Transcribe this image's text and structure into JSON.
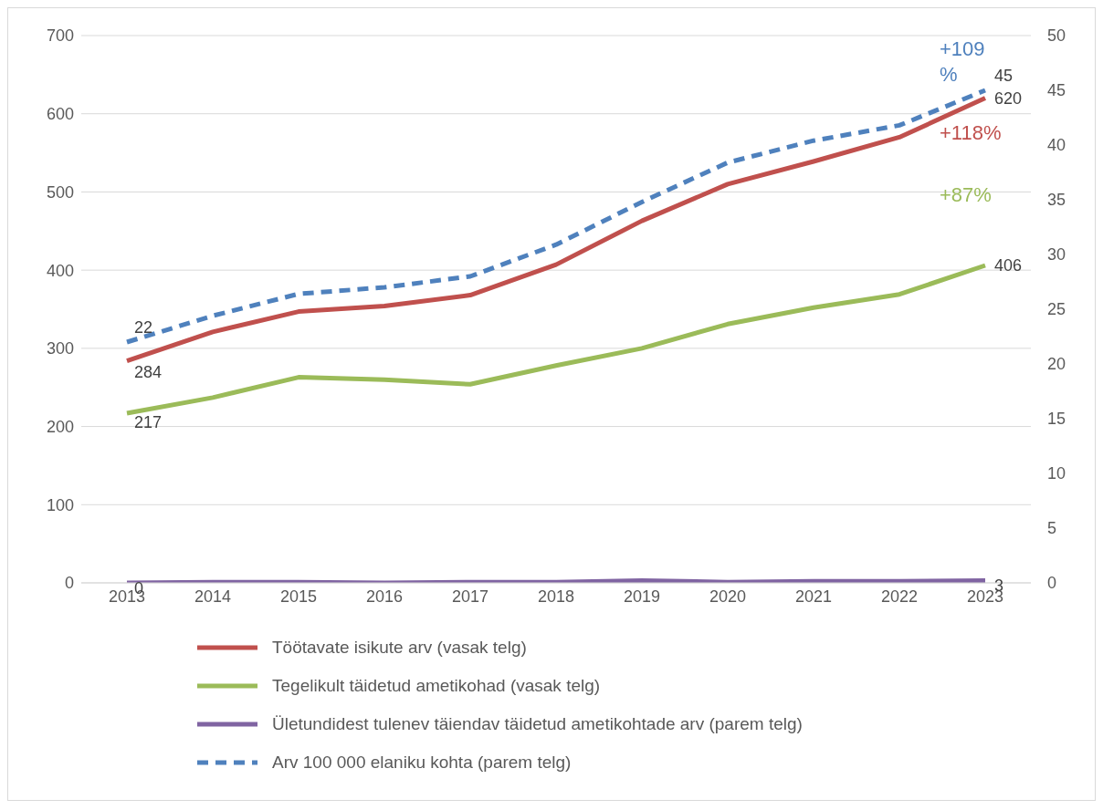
{
  "chart_data": {
    "type": "line",
    "categories": [
      "2013",
      "2014",
      "2015",
      "2016",
      "2017",
      "2018",
      "2019",
      "2020",
      "2021",
      "2022",
      "2023"
    ],
    "series": [
      {
        "name": "Töötavate isikute arv (vasak telg)",
        "color": "#c0504d",
        "values": [
          284,
          321,
          347,
          354,
          368,
          407,
          463,
          510,
          539,
          570,
          620
        ],
        "value_labels": [
          "284",
          null,
          null,
          null,
          null,
          null,
          null,
          null,
          null,
          null,
          "620"
        ]
      },
      {
        "name": "Tegelikult täidetud ametikohad (vasak telg)",
        "color": "#9bbb59",
        "values": [
          217,
          237,
          263,
          260,
          254,
          278,
          300,
          331,
          352,
          369,
          406
        ],
        "value_labels": [
          "217",
          null,
          null,
          null,
          null,
          null,
          null,
          null,
          null,
          null,
          "406"
        ]
      },
      {
        "name": "Ületundidest tulenev täiendav täidetud ametikohtade arv (parem telg)",
        "color": "#8064a2",
        "values": [
          0,
          1,
          1,
          0,
          1,
          1,
          3,
          1,
          2,
          2,
          3
        ],
        "value_labels": [
          "0",
          null,
          null,
          null,
          null,
          null,
          null,
          null,
          null,
          null,
          "3"
        ]
      },
      {
        "name": "Arv 100 000 elaniku kohta (parem telg)",
        "color": "#4f81bd",
        "axis": "y2",
        "line_style": "dashed",
        "values": [
          22,
          24.4,
          26.4,
          27,
          28,
          30.9,
          34.8,
          38.4,
          40.4,
          41.8,
          45
        ],
        "value_labels": [
          "22",
          null,
          null,
          null,
          null,
          null,
          null,
          null,
          null,
          null,
          "45"
        ]
      }
    ],
    "annotations": [
      "+118%",
      "+87%",
      "+109 %"
    ],
    "ylim": [
      0,
      700
    ],
    "yticks": [
      0,
      100,
      200,
      300,
      400,
      500,
      600,
      700
    ],
    "y2lim": [
      0,
      50
    ],
    "y2ticks": [
      0,
      5,
      10,
      15,
      20,
      25,
      30,
      35,
      40,
      45,
      50
    ],
    "grid": "y",
    "legend": "bottom",
    "marker": "none"
  }
}
